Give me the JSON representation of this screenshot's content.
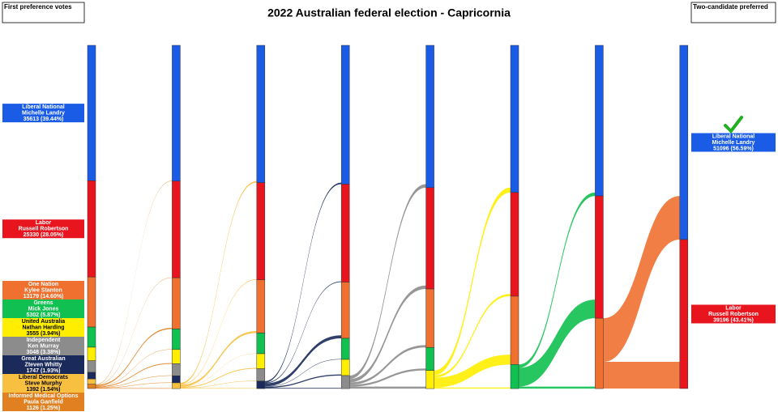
{
  "chart_data": {
    "type": "sankey",
    "title": "2022 Australian federal election - Capricornia",
    "left_heading": "First preference votes",
    "right_heading": "Two-candidate preferred",
    "candidates": [
      {
        "party": "Liberal National",
        "name": "Michelle Landry",
        "color": "#1a5ce6"
      },
      {
        "party": "Labor",
        "name": "Russell Robertson",
        "color": "#e8141e"
      },
      {
        "party": "One Nation",
        "name": "Kylee Stanton",
        "color": "#f07030"
      },
      {
        "party": "Greens",
        "name": "Mick Jones",
        "color": "#10c050"
      },
      {
        "party": "United Australia",
        "name": "Nathan Harding",
        "color": "#ffee00"
      },
      {
        "party": "Independent",
        "name": "Ken Murray",
        "color": "#8c8c8c"
      },
      {
        "party": "Great Australian",
        "name": "Zteven Whitty",
        "color": "#1a2a5a"
      },
      {
        "party": "Liberal Democrats",
        "name": "Steve Murphy",
        "color": "#f8c040"
      },
      {
        "party": "Informed Medical Options",
        "name": "Paula Ganfield",
        "color": "#e08020"
      }
    ],
    "first_labels": [
      "35613 (39.44%)",
      "25330 (28.05%)",
      "13179 (14.60%)",
      "5302 (5.87%)",
      "3555 (3.94%)",
      "3048 (3.38%)",
      "1747 (1.93%)",
      "1392 (1.54%)",
      "1126 (1.25%)"
    ],
    "final_labels": [
      "51096 (56.59%)",
      "39196 (43.41%)",
      null,
      null,
      null,
      null,
      null,
      null,
      null
    ],
    "rounds": [
      [
        35613,
        25330,
        13179,
        5302,
        3555,
        3048,
        1747,
        1392,
        1126
      ],
      [
        35730,
        25420,
        13480,
        5400,
        3760,
        3150,
        1850,
        1522,
        null
      ],
      [
        36130,
        25570,
        13980,
        5450,
        3960,
        3250,
        1972,
        null,
        null
      ],
      [
        36530,
        25770,
        14780,
        5550,
        4260,
        3422,
        null,
        null,
        null
      ],
      [
        37430,
        26670,
        15380,
        6050,
        4782,
        null,
        null,
        null,
        null
      ],
      [
        38730,
        27270,
        17980,
        6332,
        null,
        null,
        null,
        null,
        null
      ],
      [
        39630,
        32170,
        18512,
        null,
        null,
        null,
        null,
        null,
        null
      ],
      [
        51096,
        39196,
        null,
        null,
        null,
        null,
        null,
        null,
        null
      ]
    ]
  }
}
